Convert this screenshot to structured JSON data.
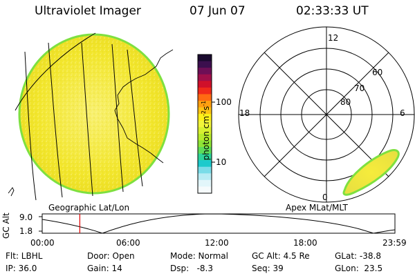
{
  "header": {
    "title": "Ultraviolet Imager",
    "date": "07 Jun 07",
    "time": "02:33:33 UT"
  },
  "colorbar": {
    "unit_label": "photon cm",
    "unit_exp1": "-2",
    "unit_mid": "s",
    "unit_exp2": "-1",
    "tick_labels": [
      "100",
      "10"
    ],
    "colors": [
      "#1a0a2e",
      "#3c0f4e",
      "#6e0f56",
      "#a0104a",
      "#d0102a",
      "#f02a1a",
      "#ff6a12",
      "#ff9f10",
      "#ffc414",
      "#fff01a",
      "#f2f43a",
      "#d8f030",
      "#b8ec2c",
      "#8ee436",
      "#5edc5a",
      "#2ed49a",
      "#1ccacc",
      "#7adce8",
      "#b8ecf4",
      "#e2f6fa",
      "#f6fbfc"
    ]
  },
  "left_panel": {
    "label": "Geographic Lat/Lon",
    "fill_color": "#f4ec3c",
    "rim_color": "#8ee436"
  },
  "right_panel": {
    "label": "Apex MLat/MLT",
    "mlt_labels": {
      "top": "12",
      "left": "18",
      "right": "6",
      "bottom": "0"
    },
    "lat_labels": [
      "60",
      "70",
      "80"
    ]
  },
  "altitude_plot": {
    "axis_title": "GC Alt",
    "y_ticks": [
      "9.0",
      "1.8"
    ],
    "x_ticks": [
      "00:00",
      "06:00",
      "12:00",
      "18:00",
      "23:59"
    ],
    "marker_time_hours": 2.56,
    "marker_color": "#e00000"
  },
  "footer": {
    "flt": "Flt: LBHL",
    "ip": "IP: 36.0",
    "door": "Door: Open",
    "gain": "Gain: 14",
    "mode": "Mode: Normal",
    "dsp": "Dsp:   -8.3",
    "gcalt": "GC Alt: 4.5 Re",
    "seq": "Seq: 39",
    "glat": "GLat: -38.8",
    "glon": "GLon:  23.5"
  }
}
